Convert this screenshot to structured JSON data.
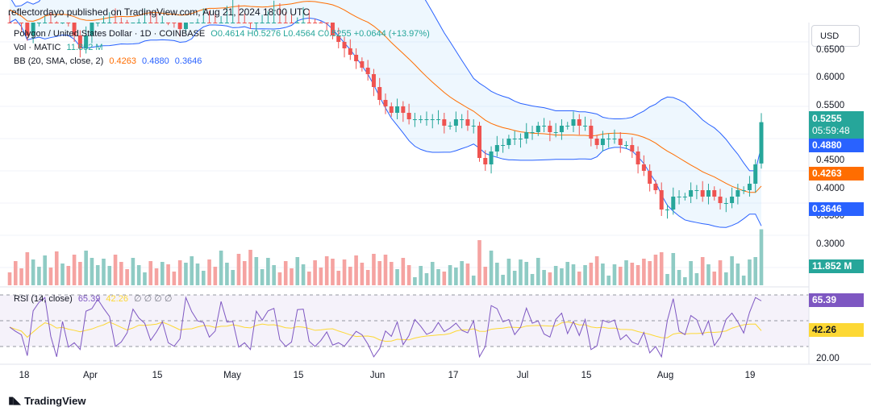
{
  "header": {
    "publisher": "reflectordayo published on TradingView.com, Aug 21, 2024 18:00 UTC"
  },
  "legend": {
    "symbol": "Polygon / United States Dollar · 1D · COINBASE",
    "ohlc": "O0.4614 H0.5276 L0.4564 C0.5255 +0.0644 (+13.97%)",
    "vol_label": "Vol · MATIC",
    "vol_value": "11.852 M",
    "bb_label": "BB (20, SMA, close, 2)",
    "bb_basis": "0.4263",
    "bb_upper": "0.4880",
    "bb_lower": "0.3646",
    "rsi_label": "RSI (14, close)",
    "rsi_value": "65.39",
    "rsi_ma": "42.26",
    "rsi_extra": "∅ ∅ ∅ ∅"
  },
  "currency_button": "USD",
  "price_axis": {
    "ticks": [
      "0.6500",
      "0.6000",
      "0.5500",
      "0.4500",
      "0.4000",
      "0.3500",
      "0.3000"
    ],
    "last_price": "0.5255",
    "countdown": "05:59:48",
    "bb_upper_tag": "0.4880",
    "bb_basis_tag": "0.4263",
    "bb_lower_tag": "0.3646",
    "volume_tag": "11.852 M"
  },
  "rsi_axis": {
    "ticks": [
      "20.00"
    ],
    "value_tag": "65.39",
    "ma_tag": "42.26"
  },
  "time_axis": {
    "ticks": [
      "18",
      "Apr",
      "15",
      "May",
      "15",
      "Jun",
      "17",
      "Jul",
      "15",
      "Aug",
      "19"
    ]
  },
  "footer": {
    "brand": "TradingView"
  },
  "colors": {
    "up": "#26a69a",
    "down": "#ef5350",
    "bb_band": "#2962ff",
    "bb_basis": "#ff6d00",
    "rsi": "#7e57c2",
    "rsi_ma": "#fdd835",
    "vol_up": "#8fcbc4",
    "vol_down": "#f5a3a1"
  },
  "chart_data": {
    "type": "candlestick",
    "symbol": "MATICUSD",
    "interval": "1D",
    "price_range": [
      0.27,
      0.68
    ],
    "close_approx": [
      0.7,
      0.69,
      0.68,
      0.66,
      0.68,
      0.7,
      0.72,
      0.71,
      0.69,
      0.7,
      0.68,
      0.66,
      0.64,
      0.66,
      0.68,
      0.7,
      0.71,
      0.72,
      0.71,
      0.7,
      0.69,
      0.7,
      0.71,
      0.72,
      0.71,
      0.7,
      0.7,
      0.69,
      0.68,
      0.67,
      0.69,
      0.7,
      0.71,
      0.72,
      0.71,
      0.7,
      0.72,
      0.73,
      0.74,
      0.72,
      0.7,
      0.68,
      0.7,
      0.71,
      0.72,
      0.73,
      0.72,
      0.71,
      0.7,
      0.71,
      0.72,
      0.71,
      0.7,
      0.69,
      0.68,
      0.66,
      0.65,
      0.64,
      0.63,
      0.62,
      0.61,
      0.6,
      0.58,
      0.56,
      0.55,
      0.54,
      0.55,
      0.54,
      0.53,
      0.53,
      0.53,
      0.53,
      0.53,
      0.53,
      0.52,
      0.52,
      0.53,
      0.53,
      0.52,
      0.52,
      0.47,
      0.46,
      0.48,
      0.49,
      0.49,
      0.5,
      0.5,
      0.5,
      0.51,
      0.51,
      0.52,
      0.52,
      0.51,
      0.51,
      0.52,
      0.52,
      0.53,
      0.52,
      0.52,
      0.5,
      0.49,
      0.5,
      0.5,
      0.5,
      0.49,
      0.49,
      0.48,
      0.46,
      0.45,
      0.43,
      0.42,
      0.39,
      0.39,
      0.41,
      0.41,
      0.41,
      0.42,
      0.42,
      0.41,
      0.42,
      0.41,
      0.4,
      0.4,
      0.41,
      0.42,
      0.42,
      0.43,
      0.46,
      0.5255
    ],
    "bollinger": {
      "upper_last": 0.488,
      "basis_last": 0.4263,
      "lower_last": 0.3646
    },
    "volume_last": "11.852 M",
    "rsi_last": 65.39,
    "rsi_ma_last": 42.26
  }
}
